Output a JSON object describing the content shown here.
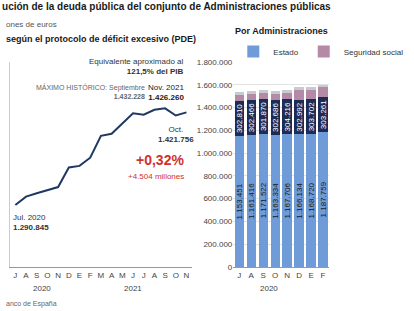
{
  "title": "ución de la deuda pública del conjunto de Administraciones públicas",
  "subtitle": "ones de euros",
  "source": "anco de España",
  "chart_data": [
    {
      "type": "line",
      "title": "según el protocolo de déficit excesivo (PDE)",
      "categories": [
        "J",
        "A",
        "S",
        "O",
        "N",
        "D",
        "E",
        "F",
        "M",
        "A",
        "M",
        "J",
        "J",
        "A",
        "S",
        "O",
        "N"
      ],
      "x_groups": [
        {
          "label": "2020",
          "start": 0,
          "end": 5
        },
        {
          "label": "2021",
          "start": 6,
          "end": 16
        }
      ],
      "values": [
        1290845,
        1303000,
        1308000,
        1313000,
        1317000,
        1345570,
        1348000,
        1360000,
        1392000,
        1395000,
        1410000,
        1425000,
        1423000,
        1430000,
        1432228,
        1421756,
        1426260
      ],
      "color": "#1f3864",
      "ylim": [
        1200000,
        1500000
      ],
      "yticks": [],
      "tick_labels": "x",
      "grid": false,
      "annotations": [
        {
          "lines": [
            "Jul. 2020",
            "1.290.845"
          ],
          "point": 0
        },
        {
          "lines": [
            "MÁXIMO HISTÓRICO: Septiembre",
            "1.432.228"
          ],
          "point": 14
        },
        {
          "lines": [
            "Equivalente aproximado al",
            "121,5% del PIB"
          ],
          "point": 16
        },
        {
          "lines": [
            "Nov. 2021",
            "1.426.260"
          ],
          "point": 16
        },
        {
          "lines": [
            "Oct.",
            "1.421.756"
          ],
          "point": 15
        },
        {
          "lines": [
            "+0,32%"
          ],
          "point": 16
        },
        {
          "lines": [
            "+4.504 millones"
          ],
          "point": 16
        }
      ]
    },
    {
      "type": "bar",
      "title": "Por Administraciones",
      "stacked": true,
      "data_labels": true,
      "legend": "top",
      "grid": true,
      "categories": [
        "J",
        "A",
        "S",
        "O",
        "N",
        "D",
        "E",
        "F"
      ],
      "x_groups": [
        {
          "label": "2020",
          "start": 0,
          "end": 5
        }
      ],
      "ylim": [
        0,
        1800000
      ],
      "yticks": [
        0,
        {
          "value": 200000,
          "label": "200.000"
        },
        {
          "value": 400000,
          "label": "400.000"
        },
        {
          "value": 600000,
          "label": "600.000"
        },
        {
          "value": 800000,
          "label": "800.000"
        },
        {
          "value": 1000000,
          "label": "1.000.000"
        },
        {
          "value": 1200000,
          "label": "1.200.000"
        },
        {
          "value": 1400000,
          "label": "1.400.000"
        },
        {
          "value": 1600000,
          "label": "1.600.000"
        },
        {
          "value": 1800000,
          "label": "1.800.000"
        }
      ],
      "series": [
        {
          "name": "Estado",
          "color": "#6f9bd8",
          "values": [
            1153451,
            1161416,
            1171522,
            1163334,
            1167706,
            1166134,
            1168720,
            1187759
          ],
          "value_labels": [
            "1.153.451",
            "1.161.416",
            "1.171.522",
            "1.163.334",
            "1.167.706",
            "1.166.134",
            "1.168.720",
            "1.187.759"
          ]
        },
        {
          "color": "#1d2c55",
          "values": [
            302810,
            302466,
            301870,
            302686,
            304216,
            302992,
            303702,
            303261
          ],
          "value_labels": [
            "302.810",
            "302.466",
            "301.870",
            "302.686",
            "304.216",
            "302.992",
            "303.702",
            "303.261"
          ]
        },
        {
          "name": "Seguridad social",
          "color": "#b58aa6",
          "values": [
            55000,
            55000,
            55000,
            55000,
            55000,
            85400,
            85400,
            85400
          ]
        },
        {
          "color": "#c7cad1",
          "values": [
            23000,
            23000,
            23000,
            23000,
            23000,
            23000,
            23000,
            23000
          ]
        }
      ]
    }
  ]
}
